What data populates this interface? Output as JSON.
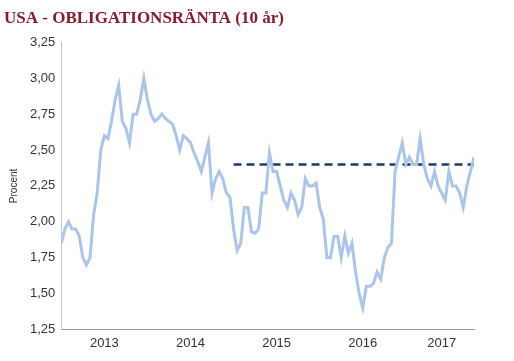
{
  "chart_data": {
    "type": "line",
    "title": "USA - OBLIGATIONSRÄNTA (10 år)",
    "y_label": "Procent",
    "categories": [
      null,
      null,
      null,
      null,
      null,
      null,
      null,
      null,
      null,
      null,
      null,
      null,
      "2013",
      null,
      null,
      null,
      null,
      null,
      null,
      null,
      null,
      null,
      null,
      null,
      null,
      null,
      null,
      null,
      null,
      null,
      null,
      null,
      null,
      null,
      null,
      null,
      "2014",
      null,
      null,
      null,
      null,
      null,
      null,
      null,
      null,
      null,
      null,
      null,
      null,
      null,
      null,
      null,
      null,
      null,
      null,
      null,
      null,
      null,
      null,
      null,
      "2015",
      null,
      null,
      null,
      null,
      null,
      null,
      null,
      null,
      null,
      null,
      null,
      null,
      null,
      null,
      null,
      null,
      null,
      null,
      null,
      null,
      null,
      null,
      null,
      "2016",
      null,
      null,
      null,
      null,
      null,
      null,
      null,
      null,
      null,
      null,
      null,
      null,
      null,
      null,
      null,
      null,
      null,
      null,
      null,
      null,
      null,
      "2017",
      null,
      null,
      null,
      null,
      null,
      null,
      null,
      null,
      null
    ],
    "series": [
      {
        "color": "#a9c5ec",
        "line_style": "solid",
        "values": [
          1.85,
          1.95,
          2.0,
          1.95,
          1.95,
          1.9,
          1.75,
          1.7,
          1.75,
          2.05,
          2.2,
          2.5,
          2.6,
          2.58,
          2.7,
          2.85,
          2.95,
          2.7,
          2.65,
          2.55,
          2.75,
          2.75,
          2.85,
          3.0,
          2.85,
          2.75,
          2.7,
          2.72,
          2.75,
          2.72,
          2.7,
          2.68,
          2.6,
          2.5,
          2.6,
          2.58,
          2.55,
          2.48,
          2.42,
          2.35,
          2.45,
          2.55,
          2.2,
          2.3,
          2.35,
          2.3,
          2.2,
          2.17,
          1.95,
          1.8,
          1.85,
          2.1,
          2.1,
          1.93,
          1.92,
          1.95,
          2.2,
          2.2,
          2.48,
          2.35,
          2.35,
          2.25,
          2.15,
          2.1,
          2.2,
          2.15,
          2.05,
          2.1,
          2.3,
          2.25,
          2.25,
          2.27,
          2.1,
          2.02,
          1.75,
          1.75,
          1.9,
          1.9,
          1.75,
          1.9,
          1.78,
          1.85,
          1.65,
          1.5,
          1.4,
          1.55,
          1.55,
          1.57,
          1.65,
          1.6,
          1.75,
          1.82,
          1.85,
          2.35,
          2.45,
          2.55,
          2.4,
          2.45,
          2.4,
          2.4,
          2.58,
          2.4,
          2.3,
          2.25,
          2.35,
          2.25,
          2.2,
          2.15,
          2.35,
          2.25,
          2.25,
          2.2,
          2.1,
          2.25,
          2.35,
          2.45
        ]
      },
      {
        "color": "#1f3a6e",
        "line_style": "dashed",
        "values": [
          null,
          null,
          null,
          null,
          null,
          null,
          null,
          null,
          null,
          null,
          null,
          null,
          null,
          null,
          null,
          null,
          null,
          null,
          null,
          null,
          null,
          null,
          null,
          null,
          null,
          null,
          null,
          null,
          null,
          null,
          null,
          null,
          null,
          null,
          null,
          null,
          null,
          null,
          null,
          null,
          null,
          null,
          null,
          null,
          null,
          null,
          null,
          null,
          2.4,
          2.4,
          2.4,
          2.4,
          2.4,
          2.4,
          2.4,
          2.4,
          2.4,
          2.4,
          2.4,
          2.4,
          2.4,
          2.4,
          2.4,
          2.4,
          2.4,
          2.4,
          2.4,
          2.4,
          2.4,
          2.4,
          2.4,
          2.4,
          2.4,
          2.4,
          2.4,
          2.4,
          2.4,
          2.4,
          2.4,
          2.4,
          2.4,
          2.4,
          2.4,
          2.4,
          2.4,
          2.4,
          2.4,
          2.4,
          2.4,
          2.4,
          2.4,
          2.4,
          2.4,
          2.4,
          2.4,
          2.4,
          2.4,
          2.4,
          2.4,
          2.4,
          2.4,
          2.4,
          2.4,
          2.4,
          2.4,
          2.4,
          2.4,
          2.4,
          2.4,
          2.4,
          2.4,
          2.4,
          2.4,
          2.4,
          2.4,
          2.4
        ]
      }
    ],
    "ylim": [
      1.25,
      3.25
    ],
    "yticks": [
      {
        "value": 1.25,
        "label": "1,25"
      },
      {
        "value": 1.5,
        "label": "1,50"
      },
      {
        "value": 1.75,
        "label": "1,75"
      },
      {
        "value": 2,
        "label": "2,00"
      },
      {
        "value": 2.25,
        "label": "2,25"
      },
      {
        "value": 2.5,
        "label": "2,50"
      },
      {
        "value": 2.75,
        "label": "2,75"
      },
      {
        "value": 3,
        "label": "3,00"
      },
      {
        "value": 3.25,
        "label": "3,25"
      }
    ],
    "grid": false
  }
}
